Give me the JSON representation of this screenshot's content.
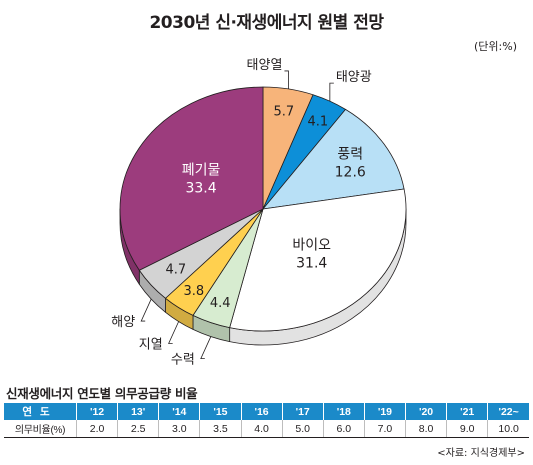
{
  "title": "2030년 신·재생에너지 원별 전망",
  "unit": "(단위:%)",
  "colors": {
    "태양열": "#f7b47a",
    "태양광": "#0d8fd8",
    "풍력": "#b8e0f6",
    "바이오": "#ffffff",
    "수력": "#d7ecd0",
    "지열": "#ffd04f",
    "해양": "#d3d3d3",
    "폐기물": "#9c3c7d",
    "outline": "#231f20",
    "table_header": "#1b8ac9"
  },
  "chart_data": {
    "type": "pie",
    "title": "2030년 신·재생에너지 원별 전망",
    "unit": "(단위:%)",
    "slices": [
      {
        "label": "태양열",
        "value": 5.7,
        "value_text": "5.7"
      },
      {
        "label": "태양광",
        "value": 4.1,
        "value_text": "4.1"
      },
      {
        "label": "풍력",
        "value": 12.6,
        "value_text": "12.6"
      },
      {
        "label": "바이오",
        "value": 31.4,
        "value_text": "31.4"
      },
      {
        "label": "수력",
        "value": 4.4,
        "value_text": "4.4"
      },
      {
        "label": "지열",
        "value": 3.8,
        "value_text": "3.8"
      },
      {
        "label": "해양",
        "value": 4.7,
        "value_text": "4.7"
      },
      {
        "label": "폐기물",
        "value": 33.4,
        "value_text": "33.4"
      }
    ]
  },
  "table": {
    "title": "신재생에너지 연도별 의무공급량 비율",
    "header": [
      "연도",
      "'12",
      "13'",
      "'14",
      "'15",
      "'16",
      "'17",
      "'18",
      "'19",
      "'20",
      "'21",
      "'22~"
    ],
    "row": [
      "의무비율(%)",
      "2.0",
      "2.5",
      "3.0",
      "3.5",
      "4.0",
      "5.0",
      "6.0",
      "7.0",
      "8.0",
      "9.0",
      "10.0"
    ]
  },
  "source": "<자료: 지식경제부>"
}
